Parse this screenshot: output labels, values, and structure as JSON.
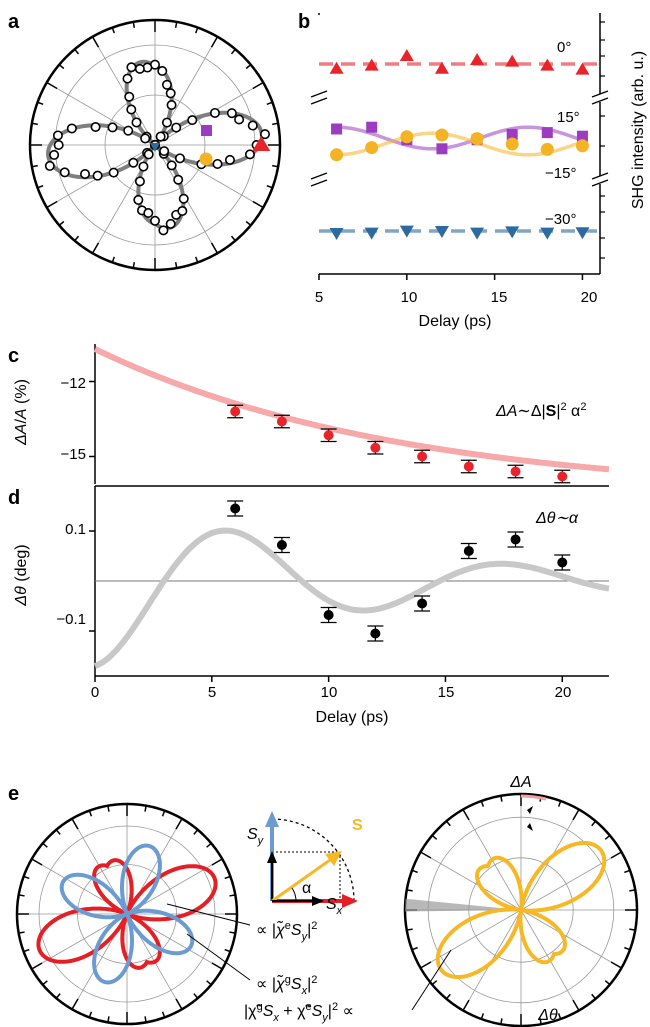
{
  "panels": {
    "a": "a",
    "b": "b",
    "c": "c",
    "d": "d",
    "e": "e"
  },
  "chart_data": [
    {
      "panel": "a",
      "type": "scatter",
      "subtype": "polar",
      "description_marks": "open circles: data points; gray curve: eight-petal fit; colored markers at 0°, 15°, -15°, -30° analyzer angles",
      "grid": true
    },
    {
      "panel": "b",
      "type": "scatter",
      "xlabel": "Delay (ps)",
      "ylabel": "SHG intensity (arb. u.)",
      "xlim": [
        5,
        21
      ],
      "xticks": [
        5,
        10,
        15,
        20
      ],
      "series": [
        {
          "name": "0°",
          "marker": "triangle-up",
          "color": "#e8242a",
          "x": [
            6,
            8,
            10,
            12,
            14,
            16,
            18,
            20
          ],
          "y": [
            -0.6,
            -0.2,
            1.0,
            -0.6,
            0.5,
            0.3,
            -0.2,
            -0.7
          ]
        },
        {
          "name": "15°",
          "marker": "square",
          "color": "#9b3cc1",
          "x": [
            6,
            8,
            10,
            12,
            14,
            16,
            18,
            20
          ],
          "y": [
            0.5,
            0.6,
            -0.1,
            -0.6,
            -0.1,
            0.2,
            0.3,
            0.1
          ]
        },
        {
          "name": "−15°",
          "marker": "circle",
          "color": "#f4b324",
          "x": [
            6,
            8,
            10,
            12,
            14,
            16,
            18,
            20
          ],
          "y": [
            -0.6,
            -0.2,
            0.4,
            0.5,
            0.3,
            0.0,
            -0.3,
            -0.1
          ]
        },
        {
          "name": "−30°",
          "marker": "triangle-down",
          "color": "#2c6aa0",
          "x": [
            6,
            8,
            10,
            12,
            14,
            16,
            18,
            20
          ],
          "y": [
            -0.5,
            -0.4,
            0.1,
            0.0,
            -0.4,
            -0.1,
            -0.4,
            -0.3
          ]
        }
      ]
    },
    {
      "panel": "c",
      "type": "scatter",
      "ylabel_parts": [
        "ΔA",
        "/",
        "A",
        " (%)"
      ],
      "annotation": "ΔA∼Δ|S|² α²",
      "xlim": [
        0,
        22
      ],
      "ylim": [
        -16.1,
        -10.5
      ],
      "yticks": [
        -12,
        -15
      ],
      "x": [
        6,
        8,
        10,
        12,
        14,
        16,
        18,
        20
      ],
      "y": [
        -13.2,
        -13.6,
        -14.15,
        -14.65,
        -15.0,
        -15.4,
        -15.6,
        -15.8
      ],
      "yerr": 0.25,
      "fit": "exponential decay"
    },
    {
      "panel": "d",
      "type": "scatter",
      "xlabel": "Delay (ps)",
      "ylabel_parts": [
        "Δθ",
        " (deg)"
      ],
      "annotation": "Δθ∼α",
      "xlim": [
        0,
        22
      ],
      "ylim": [
        -0.19,
        0.19
      ],
      "yticks": [
        0.1,
        -0.1
      ],
      "xticks": [
        0,
        5,
        10,
        15,
        20
      ],
      "x": [
        6,
        8,
        10,
        12,
        14,
        16,
        18,
        20
      ],
      "y": [
        0.145,
        0.072,
        -0.068,
        -0.105,
        -0.045,
        0.06,
        0.083,
        0.037
      ],
      "yerr": 0.015,
      "fit": "damped oscillation"
    },
    {
      "panel": "e",
      "type": "diagram",
      "labels": {
        "blue_term": "∝ |χ̃ᵉSᵧ|²",
        "red_term": "∝ |χ̃ᵍSₓ|²",
        "sum_term": "|χ̃ᵍSₓ + χ̃ᵉSᵧ|² ∝",
        "sy": "Sy",
        "sx": "Sx",
        "s": "S",
        "alpha": "α",
        "delta_a": "ΔA",
        "delta_theta": "Δθ"
      },
      "colors": {
        "red": "#e41f26",
        "blue": "#6b9bd1",
        "yellow": "#f7b825",
        "arrow_blue": "#6b9bd1"
      }
    }
  ],
  "text": {
    "b_deg0": "0°",
    "b_deg15": "15°",
    "b_degm15": "−15°",
    "b_degm30": "−30°",
    "b_xlabel": "Delay (ps)",
    "b_ylabel": "SHG intensity (arb. u.)",
    "b_t5": "5",
    "b_t10": "10",
    "b_t15": "15",
    "b_t20": "20",
    "c_ylabel_italic1": "ΔA",
    "c_ylabel_slash": "/",
    "c_ylabel_italic2": "A",
    "c_ylabel_unit": " (%)",
    "c_t12": "−12",
    "c_t15": "−15",
    "c_annot_italic": "ΔA",
    "c_annot_rest": "∼Δ|",
    "c_annot_bold": "S",
    "c_annot_tail": "|",
    "c_annot_sup2": "2",
    "c_annot_alpha": " α",
    "c_annot_sup2b": "2",
    "d_ylabel_italic": "Δθ",
    "d_ylabel_unit": " (deg)",
    "d_t01": "0.1",
    "d_tm01": "−0.1",
    "d_annot": "Δθ∼α",
    "d_xlabel": "Delay (ps)",
    "d_x0": "0",
    "d_x5": "5",
    "d_x10": "10",
    "d_x15": "15",
    "d_x20": "20",
    "e_sy": "S",
    "e_sy_sub": "y",
    "e_sx": "S",
    "e_sx_sub": "x",
    "e_s": "S",
    "e_alpha": "α",
    "e_dA": "ΔA",
    "e_dtheta": "Δθ",
    "e_blue_pre": "∝ |",
    "e_blue_chi": "χ̃",
    "e_blue_sup": "e",
    "e_blue_S": "S",
    "e_blue_sub": "y",
    "e_blue_post": "|",
    "e_blue_sq": "2",
    "e_red_pre": "∝ |",
    "e_red_chi": "χ̃",
    "e_red_sup": "g",
    "e_red_S": "S",
    "e_red_sub": "x",
    "e_red_post": "|",
    "e_red_sq": "2",
    "e_sum_1": "|χ̃",
    "e_sum_1sup": "g",
    "e_sum_S1": "S",
    "e_sum_S1sub": "x",
    "e_sum_plus": " + χ̃",
    "e_sum_2sup": "e",
    "e_sum_S2": "S",
    "e_sum_S2sub": "y",
    "e_sum_end": "|",
    "e_sum_sq": "2",
    "e_sum_prop": " ∝"
  }
}
